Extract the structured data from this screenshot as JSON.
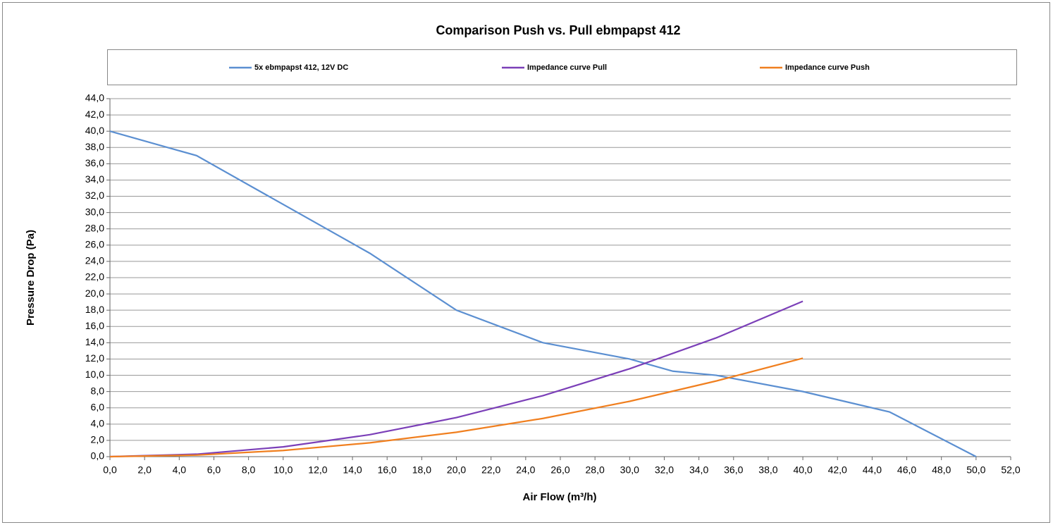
{
  "chart_data": {
    "type": "line",
    "title": "Comparison Push vs. Pull ebmpapst 412",
    "xlabel": "Air Flow (m³/h)",
    "ylabel": "Pressure Drop (Pa)",
    "legend": "top",
    "grid": true,
    "xlim": [
      0,
      52
    ],
    "ylim": [
      0,
      44
    ],
    "xticks": [
      {
        "value": 0,
        "label": "0,0"
      },
      {
        "value": 2,
        "label": "2,0"
      },
      {
        "value": 4,
        "label": "4,0"
      },
      {
        "value": 6,
        "label": "6,0"
      },
      {
        "value": 8,
        "label": "8,0"
      },
      {
        "value": 10,
        "label": "10,0"
      },
      {
        "value": 12,
        "label": "12,0"
      },
      {
        "value": 14,
        "label": "14,0"
      },
      {
        "value": 16,
        "label": "16,0"
      },
      {
        "value": 18,
        "label": "18,0"
      },
      {
        "value": 20,
        "label": "20,0"
      },
      {
        "value": 22,
        "label": "22,0"
      },
      {
        "value": 24,
        "label": "24,0"
      },
      {
        "value": 26,
        "label": "26,0"
      },
      {
        "value": 28,
        "label": "28,0"
      },
      {
        "value": 30,
        "label": "30,0"
      },
      {
        "value": 32,
        "label": "32,0"
      },
      {
        "value": 34,
        "label": "34,0"
      },
      {
        "value": 36,
        "label": "36,0"
      },
      {
        "value": 38,
        "label": "38,0"
      },
      {
        "value": 40,
        "label": "40,0"
      },
      {
        "value": 42,
        "label": "42,0"
      },
      {
        "value": 44,
        "label": "44,0"
      },
      {
        "value": 46,
        "label": "46,0"
      },
      {
        "value": 48,
        "label": "48,0"
      },
      {
        "value": 50,
        "label": "50,0"
      },
      {
        "value": 52,
        "label": "52,0"
      }
    ],
    "yticks": [
      {
        "value": 0,
        "label": "0,0"
      },
      {
        "value": 2,
        "label": "2,0"
      },
      {
        "value": 4,
        "label": "4,0"
      },
      {
        "value": 6,
        "label": "6,0"
      },
      {
        "value": 8,
        "label": "8,0"
      },
      {
        "value": 10,
        "label": "10,0"
      },
      {
        "value": 12,
        "label": "12,0"
      },
      {
        "value": 14,
        "label": "14,0"
      },
      {
        "value": 16,
        "label": "16,0"
      },
      {
        "value": 18,
        "label": "18,0"
      },
      {
        "value": 20,
        "label": "20,0"
      },
      {
        "value": 22,
        "label": "22,0"
      },
      {
        "value": 24,
        "label": "24,0"
      },
      {
        "value": 26,
        "label": "26,0"
      },
      {
        "value": 28,
        "label": "28,0"
      },
      {
        "value": 30,
        "label": "30,0"
      },
      {
        "value": 32,
        "label": "32,0"
      },
      {
        "value": 34,
        "label": "34,0"
      },
      {
        "value": 36,
        "label": "36,0"
      },
      {
        "value": 38,
        "label": "38,0"
      },
      {
        "value": 40,
        "label": "40,0"
      },
      {
        "value": 42,
        "label": "42,0"
      },
      {
        "value": 44,
        "label": "44,0"
      }
    ],
    "series": [
      {
        "name": "5x ebmpapst 412, 12V DC",
        "color": "#5b8fd1",
        "x": [
          0,
          5,
          10,
          15,
          20,
          25,
          30,
          32.5,
          35,
          40,
          45,
          50
        ],
        "values": [
          40,
          37,
          31,
          25,
          18,
          14,
          12,
          10.5,
          10,
          8,
          5.5,
          0
        ]
      },
      {
        "name": "Impedance curve Pull",
        "color": "#7b3fb8",
        "x": [
          0,
          5,
          10,
          15,
          20,
          25,
          30,
          35,
          40
        ],
        "values": [
          0,
          0.3,
          1.2,
          2.7,
          4.8,
          7.5,
          10.8,
          14.6,
          19.1
        ]
      },
      {
        "name": "Impedance curve Push",
        "color": "#f07f1f",
        "x": [
          0,
          5,
          10,
          15,
          20,
          25,
          30,
          35,
          40
        ],
        "values": [
          0,
          0.19,
          0.76,
          1.7,
          3.0,
          4.7,
          6.8,
          9.3,
          12.1
        ]
      }
    ]
  }
}
